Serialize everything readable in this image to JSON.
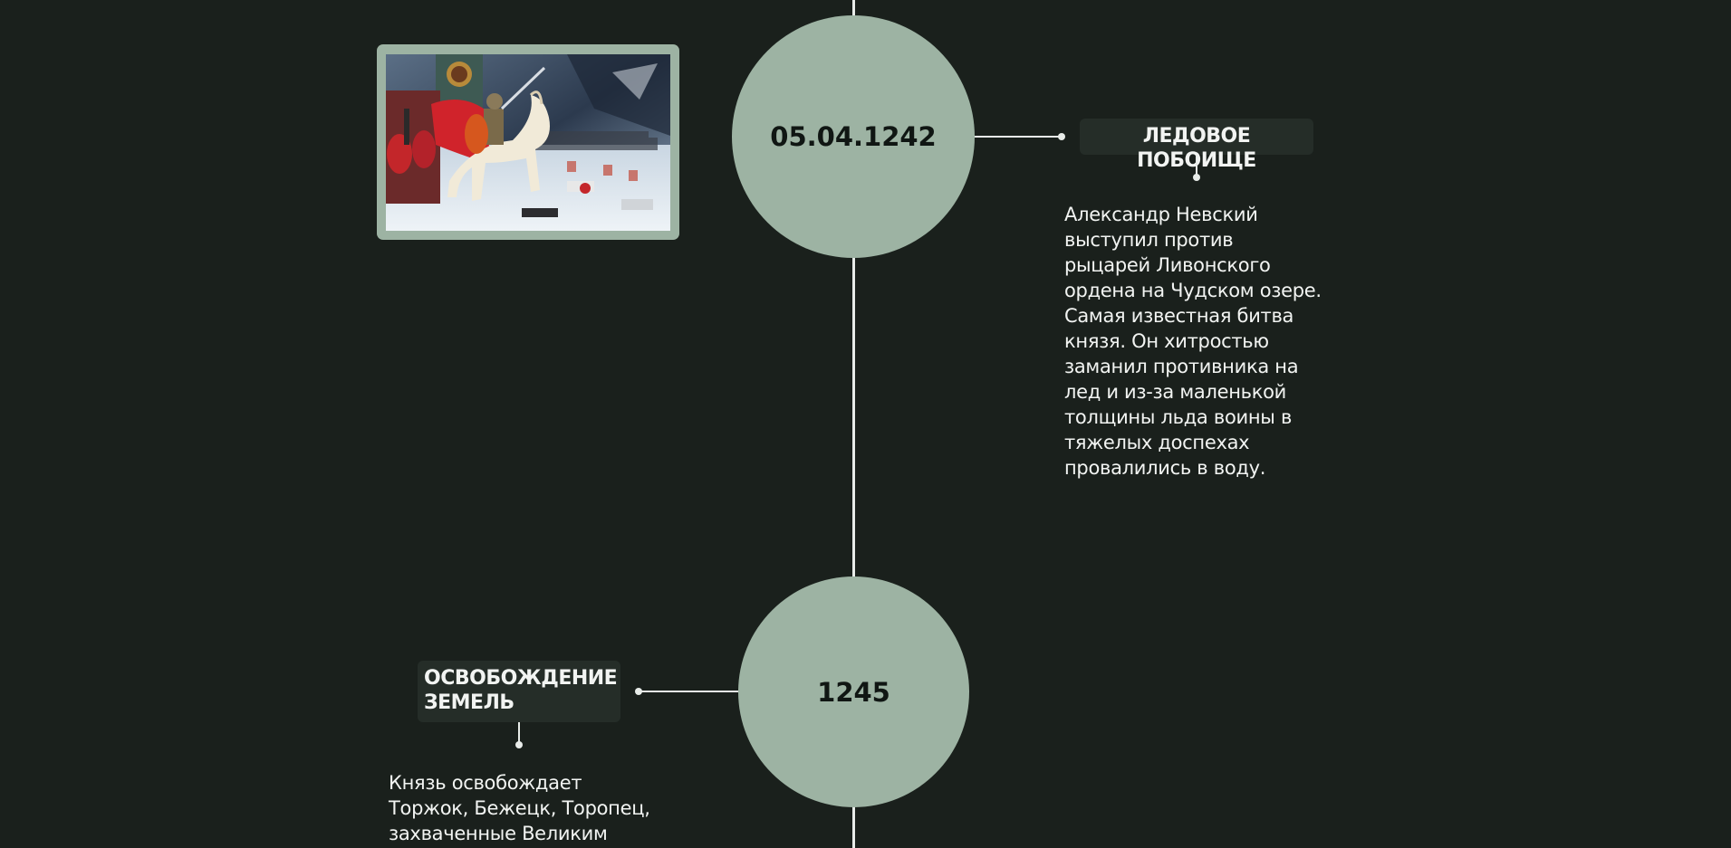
{
  "events": [
    {
      "date": "05.04.1242",
      "title": "ЛЕДОВОЕ ПОБОИЩЕ",
      "description_lines": [
        "Александр Невский",
        "выступил против",
        "рыцарей Ливонского",
        "ордена на Чудском озере.",
        "Самая известная битва",
        "князя. Он хитростью",
        "заманил противника на",
        "лед и из-за маленькой",
        "толщины льда воины в",
        "тяжелых доспехах",
        "провалились в воду."
      ],
      "image_icon": "battle-on-ice-painting"
    },
    {
      "date": "1245",
      "title_lines": [
        "ОСВОБОЖДЕНИЕ",
        "ЗЕМЕЛЬ"
      ],
      "description_lines": [
        "Князь освобождает",
        "Торжок, Бежецк, Торопец,",
        "захваченные Великим"
      ]
    }
  ],
  "colors": {
    "background": "#1a201c",
    "circle": "#9db3a3",
    "title_badge": "#252d28",
    "line": "#e8ece9",
    "text": "#f2f4f2"
  }
}
